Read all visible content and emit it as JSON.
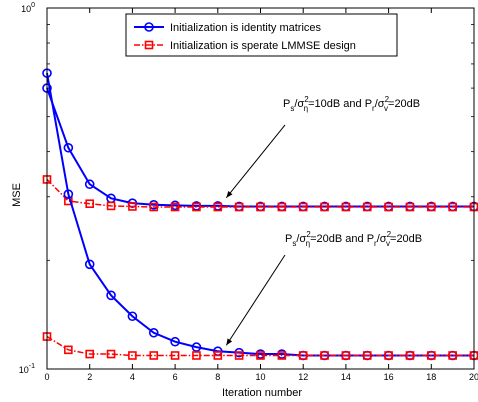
{
  "chart_data": {
    "type": "line",
    "xlabel": "Iteration number",
    "ylabel": "MSE",
    "xlim": [
      0,
      20
    ],
    "ylim": [
      0.1,
      1
    ],
    "y_scale": "log",
    "grid": false,
    "legend_position": "top-center",
    "x": [
      0,
      1,
      2,
      3,
      4,
      5,
      6,
      7,
      8,
      9,
      10,
      11,
      12,
      13,
      14,
      15,
      16,
      17,
      18,
      19,
      20
    ],
    "xticks": [
      "0",
      "2",
      "4",
      "6",
      "8",
      "10",
      "12",
      "14",
      "16",
      "18",
      "20"
    ],
    "yticks": [
      {
        "base": "10",
        "exp": "0"
      },
      {
        "base": "10",
        "exp": "-1"
      }
    ],
    "series": [
      {
        "name": "Initialization is identity matrices",
        "group": "10dB",
        "color": "#0000ff",
        "marker": "circle",
        "dash": "solid",
        "values": [
          0.6,
          0.41,
          0.325,
          0.297,
          0.288,
          0.285,
          0.284,
          0.283,
          0.283,
          0.282,
          0.282,
          0.282,
          0.282,
          0.282,
          0.282,
          0.282,
          0.282,
          0.282,
          0.282,
          0.282,
          0.282
        ]
      },
      {
        "name": "Initialization is sperate LMMSE design",
        "group": "10dB",
        "color": "#ff0000",
        "marker": "square",
        "dash": "dashdot",
        "values": [
          0.335,
          0.292,
          0.287,
          0.283,
          0.282,
          0.281,
          0.281,
          0.281,
          0.281,
          0.281,
          0.281,
          0.281,
          0.281,
          0.281,
          0.281,
          0.281,
          0.281,
          0.281,
          0.281,
          0.281,
          0.281
        ]
      },
      {
        "name": "Initialization is identity matrices",
        "group": "20dB",
        "color": "#0000ff",
        "marker": "circle",
        "dash": "solid",
        "values": [
          0.66,
          0.305,
          0.195,
          0.16,
          0.14,
          0.126,
          0.119,
          0.115,
          0.112,
          0.111,
          0.11,
          0.11,
          0.109,
          0.109,
          0.109,
          0.109,
          0.109,
          0.109,
          0.109,
          0.109,
          0.109
        ]
      },
      {
        "name": "Initialization is sperate LMMSE design",
        "group": "20dB",
        "color": "#ff0000",
        "marker": "square",
        "dash": "dashdot",
        "values": [
          0.123,
          0.113,
          0.11,
          0.11,
          0.109,
          0.109,
          0.109,
          0.109,
          0.109,
          0.109,
          0.109,
          0.109,
          0.109,
          0.109,
          0.109,
          0.109,
          0.109,
          0.109,
          0.109,
          0.109,
          0.109
        ]
      }
    ],
    "legend": [
      {
        "label": "Initialization is identity matrices",
        "color": "#0000ff",
        "marker": "circle",
        "dash": "solid"
      },
      {
        "label": "Initialization is sperate LMMSE design",
        "color": "#ff0000",
        "marker": "square",
        "dash": "dashdot"
      }
    ],
    "annotations": [
      {
        "id": "ann1",
        "parts": [
          "P",
          "s",
          "/σ",
          "2",
          "η",
          "=10dB and P",
          "r",
          "/σ",
          "2",
          "v",
          "=20dB"
        ],
        "arrow_to": {
          "x": 8.4,
          "y": 0.287
        }
      },
      {
        "id": "ann2",
        "parts": [
          "P",
          "s",
          "/σ",
          "2",
          "η",
          "=20dB and P",
          "r",
          "/σ",
          "2",
          "v",
          "=20dB"
        ],
        "arrow_to": {
          "x": 8.4,
          "y": 0.112
        }
      }
    ]
  }
}
